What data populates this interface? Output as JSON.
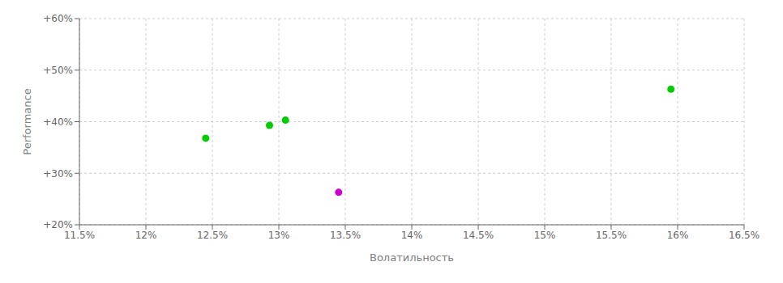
{
  "chart_data": {
    "type": "scatter",
    "xlabel": "Волатильность",
    "ylabel": "Performance",
    "xlim": [
      0.115,
      0.165
    ],
    "ylim": [
      0.2,
      0.6
    ],
    "xticks": [
      {
        "value": 0.115,
        "label": "11.5%"
      },
      {
        "value": 0.12,
        "label": "12%"
      },
      {
        "value": 0.125,
        "label": "12.5%"
      },
      {
        "value": 0.13,
        "label": "13%"
      },
      {
        "value": 0.135,
        "label": "13.5%"
      },
      {
        "value": 0.14,
        "label": "14%"
      },
      {
        "value": 0.145,
        "label": "14.5%"
      },
      {
        "value": 0.15,
        "label": "15%"
      },
      {
        "value": 0.155,
        "label": "15.5%"
      },
      {
        "value": 0.16,
        "label": "16%"
      },
      {
        "value": 0.165,
        "label": "16.5%"
      }
    ],
    "yticks": [
      {
        "value": 0.2,
        "label": "+20%"
      },
      {
        "value": 0.3,
        "label": "+30%"
      },
      {
        "value": 0.4,
        "label": "+40%"
      },
      {
        "value": 0.5,
        "label": "+50%"
      },
      {
        "value": 0.6,
        "label": "+60%"
      }
    ],
    "grid": true,
    "series": [
      {
        "color": "#00cc00",
        "x": [
          0.1245,
          0.1293,
          0.1305,
          0.1595
        ],
        "values": [
          0.368,
          0.393,
          0.403,
          0.463
        ]
      },
      {
        "color": "#cc00cc",
        "x": [
          0.1345
        ],
        "values": [
          0.263
        ]
      }
    ]
  }
}
